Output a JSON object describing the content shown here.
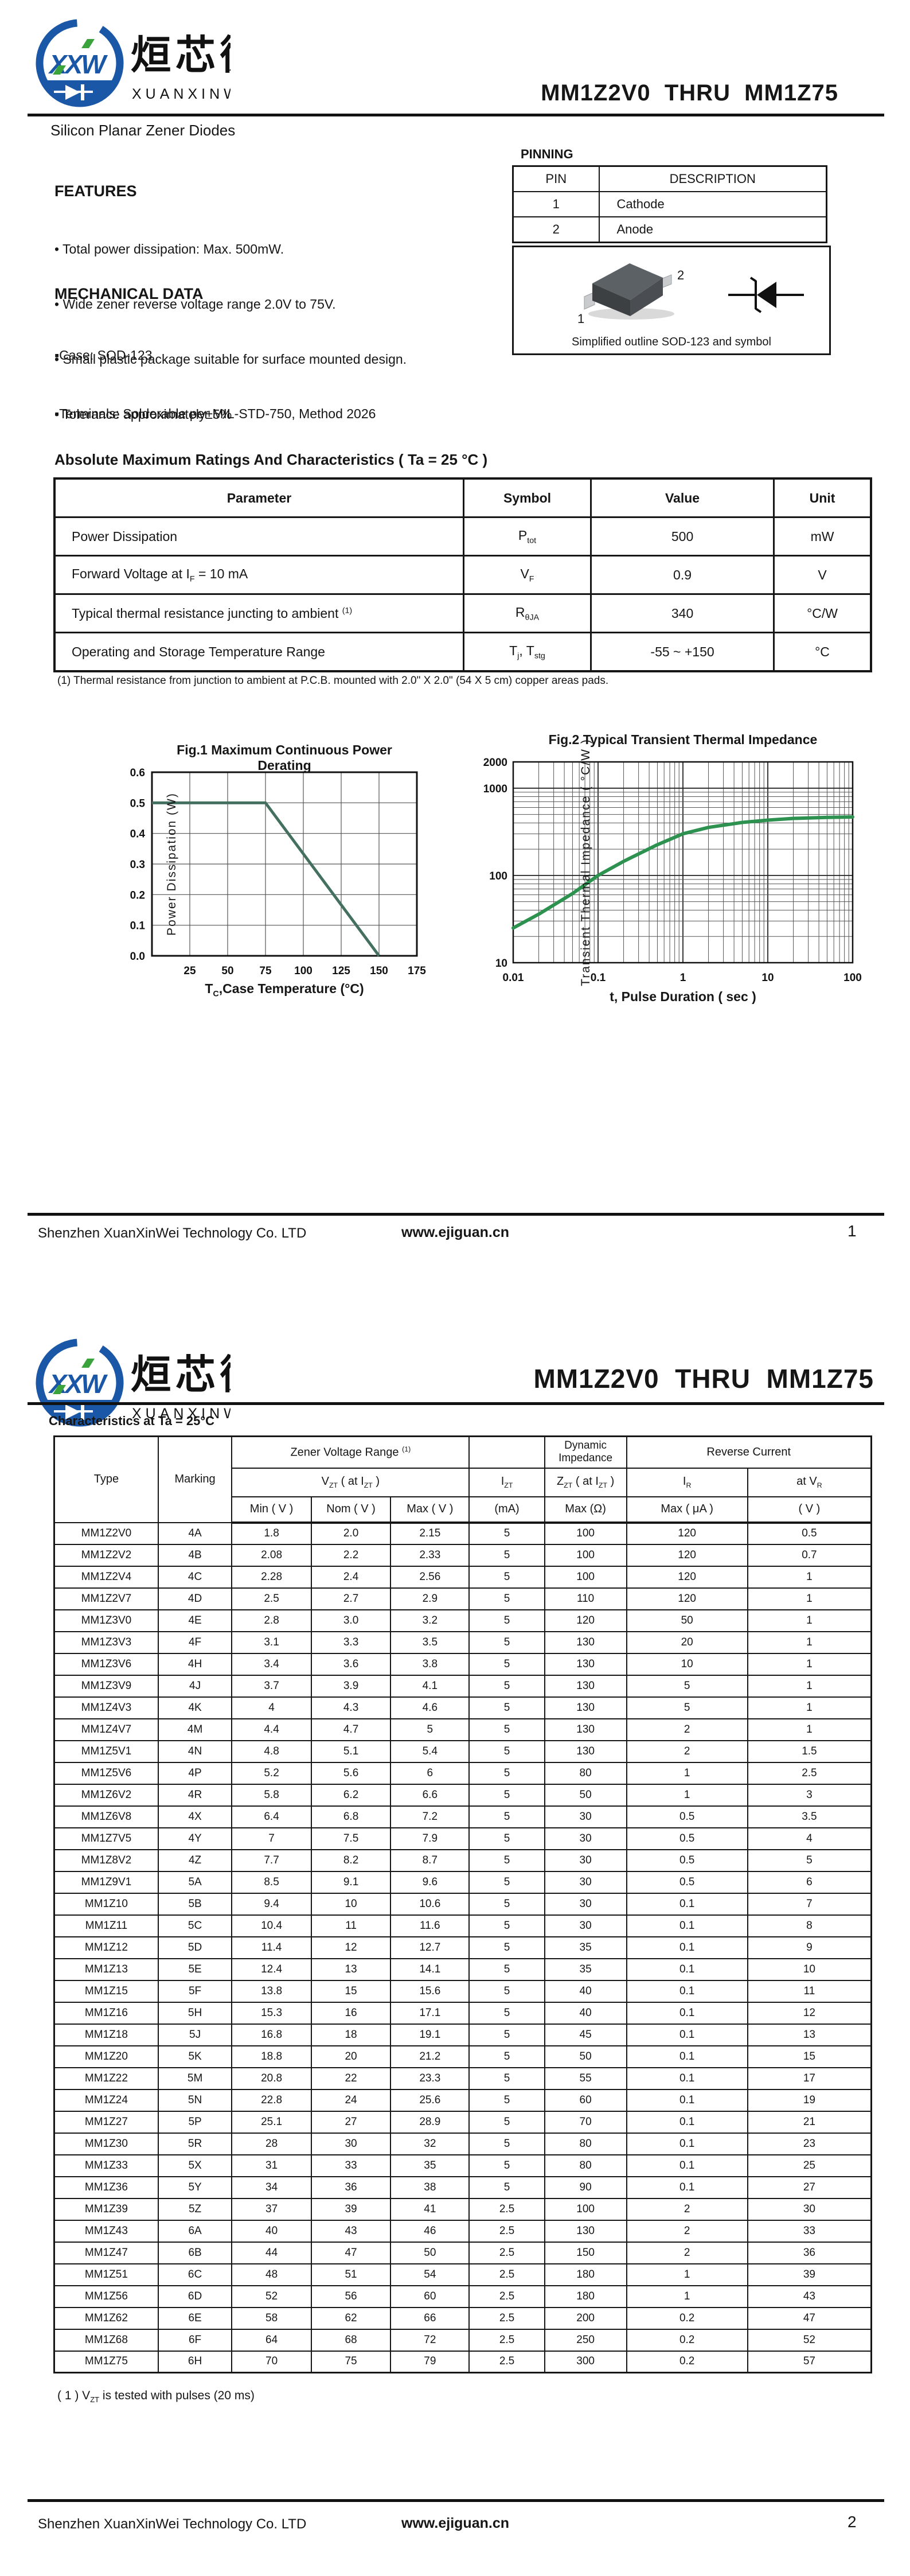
{
  "brand": {
    "monogram": "XXW",
    "name_cn": "烜芯微",
    "name_en": "XUANXINWEI"
  },
  "doc_title": "MM1Z2V0  THRU  MM1Z75",
  "page1": {
    "subtitle": "Silicon Planar Zener Diodes",
    "features": {
      "heading": "FEATURES",
      "items": [
        "• Total power dissipation: Max. 500mW.",
        "• Wide zener reverse voltage range 2.0V to 75V.",
        "• Small plastic package suitable for surface mounted design.",
        "• Tolerance approximately±5%"
      ]
    },
    "mechanical": {
      "heading": "MECHANICAL DATA",
      "items": [
        "▪Case: SOD-123",
        "▪Terminals: Solderable per MIL-STD-750, Method 2026"
      ]
    },
    "pinning": {
      "heading": "PINNING",
      "headers": [
        "PIN",
        "DESCRIPTION"
      ],
      "rows": [
        [
          "1",
          "Cathode"
        ],
        [
          "2",
          "Anode"
        ]
      ],
      "pin1_label": "1",
      "pin2_label": "2",
      "outline_caption": "Simplified outline SOD-123 and symbol"
    },
    "amr": {
      "title": "Absolute Maximum Ratings And Characteristics  ( Ta = 25 °C )",
      "headers": [
        "Parameter",
        "Symbol",
        "Value",
        "Unit"
      ],
      "rows": [
        {
          "param": "Power Dissipation",
          "symbol": "P<sub>tot</sub>",
          "value": "500",
          "unit": "mW"
        },
        {
          "param": "Forward Voltage at I<sub>F</sub> = 10 mA",
          "symbol": "V<sub>F</sub>",
          "value": "0.9",
          "unit": "V"
        },
        {
          "param": "Typical thermal resistance juncting to ambient <sup>(1)</sup>",
          "symbol": "R<sub>θJA</sub>",
          "value": "340",
          "unit": "°C/W"
        },
        {
          "param": "Operating and Storage Temperature Range",
          "symbol": "T<sub>j</sub>, T<sub>stg</sub>",
          "value": "-55 ~ +150",
          "unit": "°C"
        }
      ],
      "footnote": "(1)  Thermal resistance from junction to ambient at P.C.B. mounted with 2.0\" X 2.0\" (54 X 5 cm) copper areas pads."
    },
    "footer": {
      "company": "Shenzhen XuanXinWei Technology Co. LTD",
      "website": "www.ejiguan.cn",
      "page": "1"
    }
  },
  "chart_data": [
    {
      "id": "fig1",
      "type": "line",
      "title": "Fig.1  Maximum Continuous Power Derating",
      "xlabel": "TC, Case Temperature (°C)",
      "xlabel_html": "T<sub>C</sub>,Case Temperature (°C)",
      "ylabel": "Power Dissipation (W)",
      "xlim": [
        0,
        175
      ],
      "ylim": [
        0,
        0.6
      ],
      "scale": "linear",
      "grid": true,
      "xtick_vals": [
        25,
        50,
        75,
        100,
        125,
        150,
        175
      ],
      "xtick_labels": [
        "25",
        "50",
        "75",
        "100",
        "125",
        "150",
        "175"
      ],
      "ytick_vals": [
        0,
        0.1,
        0.2,
        0.3,
        0.4,
        0.5,
        0.6
      ],
      "ytick_labels": [
        "0.0",
        "0.1",
        "0.2",
        "0.3",
        "0.4",
        "0.5",
        "0.6"
      ],
      "series": [
        {
          "name": "max-continuous-power-derating",
          "color": "#44705f",
          "points": [
            [
              0,
              0.5
            ],
            [
              75,
              0.5
            ],
            [
              150,
              0
            ]
          ]
        }
      ]
    },
    {
      "id": "fig2",
      "type": "line",
      "title": "Fig.2  Typical Transient Thermal Impedance",
      "xlabel": "t, Pulse Duration ( sec )",
      "ylabel": "Transient Thermal Impedance ( °C/W )",
      "xlim": [
        0.01,
        100
      ],
      "ylim": [
        10,
        2000
      ],
      "scale": "log-log",
      "grid": true,
      "xtick_vals": [
        0.01,
        0.1,
        1,
        10,
        100
      ],
      "xtick_labels": [
        "0.01",
        "0.1",
        "1",
        "10",
        "100"
      ],
      "ytick_vals": [
        10,
        100,
        1000,
        2000
      ],
      "ytick_labels": [
        "10",
        "100",
        "1000",
        "2000"
      ],
      "series": [
        {
          "name": "transient-thermal-impedance",
          "color": "#2d9150",
          "points": [
            [
              0.01,
              25
            ],
            [
              0.02,
              36
            ],
            [
              0.05,
              62
            ],
            [
              0.1,
              100
            ],
            [
              0.2,
              145
            ],
            [
              0.5,
              225
            ],
            [
              1,
              300
            ],
            [
              2,
              355
            ],
            [
              5,
              405
            ],
            [
              10,
              430
            ],
            [
              20,
              450
            ],
            [
              50,
              462
            ],
            [
              100,
              468
            ]
          ]
        }
      ]
    }
  ],
  "page2": {
    "section_title": "Characteristics at Ta = 25°C",
    "table": {
      "group_headers": {
        "zvr": "Zener Voltage Range <sup>(1)</sup>",
        "dyn": "Dynamic Impedance",
        "rev": "Reverse Current"
      },
      "col_headers": {
        "type": "Type",
        "marking": "Marking",
        "vzt": "V<sub>ZT</sub> ( at I<sub>ZT</sub> )",
        "izt": "I<sub>ZT</sub>",
        "zzt": "Z<sub>ZT</sub> ( at  I<sub>ZT</sub> )",
        "ir": "I<sub>R</sub>",
        "vr": "at  V<sub>R</sub>"
      },
      "sub_headers": [
        "Min ( V )",
        "Nom ( V )",
        "Max ( V )",
        "(mA)",
        "Max (Ω)",
        "Max ( μA )",
        "( V )"
      ],
      "rows": [
        [
          "MM1Z2V0",
          "4A",
          "1.8",
          "2.0",
          "2.15",
          "5",
          "100",
          "120",
          "0.5"
        ],
        [
          "MM1Z2V2",
          "4B",
          "2.08",
          "2.2",
          "2.33",
          "5",
          "100",
          "120",
          "0.7"
        ],
        [
          "MM1Z2V4",
          "4C",
          "2.28",
          "2.4",
          "2.56",
          "5",
          "100",
          "120",
          "1"
        ],
        [
          "MM1Z2V7",
          "4D",
          "2.5",
          "2.7",
          "2.9",
          "5",
          "110",
          "120",
          "1"
        ],
        [
          "MM1Z3V0",
          "4E",
          "2.8",
          "3.0",
          "3.2",
          "5",
          "120",
          "50",
          "1"
        ],
        [
          "MM1Z3V3",
          "4F",
          "3.1",
          "3.3",
          "3.5",
          "5",
          "130",
          "20",
          "1"
        ],
        [
          "MM1Z3V6",
          "4H",
          "3.4",
          "3.6",
          "3.8",
          "5",
          "130",
          "10",
          "1"
        ],
        [
          "MM1Z3V9",
          "4J",
          "3.7",
          "3.9",
          "4.1",
          "5",
          "130",
          "5",
          "1"
        ],
        [
          "MM1Z4V3",
          "4K",
          "4",
          "4.3",
          "4.6",
          "5",
          "130",
          "5",
          "1"
        ],
        [
          "MM1Z4V7",
          "4M",
          "4.4",
          "4.7",
          "5",
          "5",
          "130",
          "2",
          "1"
        ],
        [
          "MM1Z5V1",
          "4N",
          "4.8",
          "5.1",
          "5.4",
          "5",
          "130",
          "2",
          "1.5"
        ],
        [
          "MM1Z5V6",
          "4P",
          "5.2",
          "5.6",
          "6",
          "5",
          "80",
          "1",
          "2.5"
        ],
        [
          "MM1Z6V2",
          "4R",
          "5.8",
          "6.2",
          "6.6",
          "5",
          "50",
          "1",
          "3"
        ],
        [
          "MM1Z6V8",
          "4X",
          "6.4",
          "6.8",
          "7.2",
          "5",
          "30",
          "0.5",
          "3.5"
        ],
        [
          "MM1Z7V5",
          "4Y",
          "7",
          "7.5",
          "7.9",
          "5",
          "30",
          "0.5",
          "4"
        ],
        [
          "MM1Z8V2",
          "4Z",
          "7.7",
          "8.2",
          "8.7",
          "5",
          "30",
          "0.5",
          "5"
        ],
        [
          "MM1Z9V1",
          "5A",
          "8.5",
          "9.1",
          "9.6",
          "5",
          "30",
          "0.5",
          "6"
        ],
        [
          "MM1Z10",
          "5B",
          "9.4",
          "10",
          "10.6",
          "5",
          "30",
          "0.1",
          "7"
        ],
        [
          "MM1Z11",
          "5C",
          "10.4",
          "11",
          "11.6",
          "5",
          "30",
          "0.1",
          "8"
        ],
        [
          "MM1Z12",
          "5D",
          "11.4",
          "12",
          "12.7",
          "5",
          "35",
          "0.1",
          "9"
        ],
        [
          "MM1Z13",
          "5E",
          "12.4",
          "13",
          "14.1",
          "5",
          "35",
          "0.1",
          "10"
        ],
        [
          "MM1Z15",
          "5F",
          "13.8",
          "15",
          "15.6",
          "5",
          "40",
          "0.1",
          "11"
        ],
        [
          "MM1Z16",
          "5H",
          "15.3",
          "16",
          "17.1",
          "5",
          "40",
          "0.1",
          "12"
        ],
        [
          "MM1Z18",
          "5J",
          "16.8",
          "18",
          "19.1",
          "5",
          "45",
          "0.1",
          "13"
        ],
        [
          "MM1Z20",
          "5K",
          "18.8",
          "20",
          "21.2",
          "5",
          "50",
          "0.1",
          "15"
        ],
        [
          "MM1Z22",
          "5M",
          "20.8",
          "22",
          "23.3",
          "5",
          "55",
          "0.1",
          "17"
        ],
        [
          "MM1Z24",
          "5N",
          "22.8",
          "24",
          "25.6",
          "5",
          "60",
          "0.1",
          "19"
        ],
        [
          "MM1Z27",
          "5P",
          "25.1",
          "27",
          "28.9",
          "5",
          "70",
          "0.1",
          "21"
        ],
        [
          "MM1Z30",
          "5R",
          "28",
          "30",
          "32",
          "5",
          "80",
          "0.1",
          "23"
        ],
        [
          "MM1Z33",
          "5X",
          "31",
          "33",
          "35",
          "5",
          "80",
          "0.1",
          "25"
        ],
        [
          "MM1Z36",
          "5Y",
          "34",
          "36",
          "38",
          "5",
          "90",
          "0.1",
          "27"
        ],
        [
          "MM1Z39",
          "5Z",
          "37",
          "39",
          "41",
          "2.5",
          "100",
          "2",
          "30"
        ],
        [
          "MM1Z43",
          "6A",
          "40",
          "43",
          "46",
          "2.5",
          "130",
          "2",
          "33"
        ],
        [
          "MM1Z47",
          "6B",
          "44",
          "47",
          "50",
          "2.5",
          "150",
          "2",
          "36"
        ],
        [
          "MM1Z51",
          "6C",
          "48",
          "51",
          "54",
          "2.5",
          "180",
          "1",
          "39"
        ],
        [
          "MM1Z56",
          "6D",
          "52",
          "56",
          "60",
          "2.5",
          "180",
          "1",
          "43"
        ],
        [
          "MM1Z62",
          "6E",
          "58",
          "62",
          "66",
          "2.5",
          "200",
          "0.2",
          "47"
        ],
        [
          "MM1Z68",
          "6F",
          "64",
          "68",
          "72",
          "2.5",
          "250",
          "0.2",
          "52"
        ],
        [
          "MM1Z75",
          "6H",
          "70",
          "75",
          "79",
          "2.5",
          "300",
          "0.2",
          "57"
        ]
      ]
    },
    "footnote": "( 1 )  V<sub>ZT</sub> is tested with pulses (20 ms)",
    "footer": {
      "company": "Shenzhen XuanXinWei Technology Co. LTD",
      "website": "www.ejiguan.cn",
      "page": "2"
    }
  }
}
